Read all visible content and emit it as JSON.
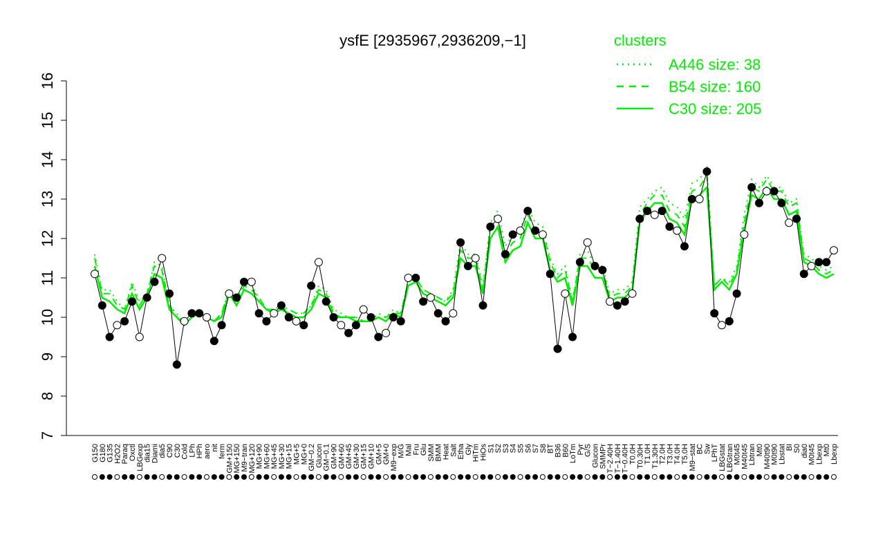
{
  "chart_data": {
    "type": "line",
    "title": "ysfE [2935967,2936209,−1]",
    "xlabel": "",
    "ylabel": "",
    "ylim": [
      7,
      16
    ],
    "yticks": [
      "7",
      "8",
      "9",
      "10",
      "11",
      "12",
      "13",
      "14",
      "15",
      "16"
    ],
    "categories": [
      "G150",
      "G180",
      "G135",
      "H2O2",
      "Paraq",
      "Oxctl",
      "LBGexp",
      "dia15",
      "Diami",
      "dia5",
      "C90",
      "C30",
      "Cold",
      "LPh",
      "HPh",
      "aero",
      "nit",
      "ferm",
      "GM+150",
      "MG+150",
      "M9−tran",
      "MG+120",
      "MG+90",
      "MG+60",
      "MG+45",
      "MG+30",
      "MG+15",
      "MG+5",
      "MG+0",
      "GM−0.2",
      "Glucon",
      "GM−0.1",
      "GM+90",
      "GM+60",
      "GM+45",
      "GM+30",
      "GM+15",
      "GM+10",
      "GM+5",
      "GM+0",
      "M9−exp",
      "M/G",
      "Mal",
      "Fru",
      "Glu",
      "SMM",
      "BMM",
      "Heat",
      "Salt",
      "Etha",
      "Gly",
      "HiTm",
      "HiOs",
      "S1",
      "S2",
      "S3",
      "S4",
      "S5",
      "S6",
      "S7",
      "S8",
      "BT",
      "B36",
      "B60",
      "LoTm",
      "Pyr",
      "G/S",
      "Glucon",
      "SMMPr",
      "T−2.40H",
      "T−1.40H",
      "T−0.40H",
      "T0.0H",
      "T0.30H",
      "T1.0H",
      "T1.30H",
      "T2.0H",
      "T3.0H",
      "T4.0H",
      "T5.0H",
      "M9−stat",
      "BC",
      "Sw",
      "LPhT",
      "LBGstat",
      "LBGtran",
      "M0t45",
      "M40t45",
      "Lbtran",
      "Mt0",
      "M40t90",
      "M0t90",
      "Lbstat",
      "BI",
      "S0",
      "dia0",
      "M0t45",
      "Lbexp",
      "Mt0",
      "Lbexp"
    ],
    "series": [
      {
        "name": "A446 size: 38",
        "style": "dotted",
        "color": "#00ee00",
        "values": [
          11.6,
          10.7,
          10.7,
          10.4,
          10.2,
          10.9,
          10.4,
          10.6,
          11.4,
          11.3,
          10.3,
          10.1,
          9.8,
          10.0,
          10.2,
          10.0,
          9.9,
          10.1,
          10.7,
          10.5,
          10.8,
          10.8,
          10.5,
          10.2,
          10.2,
          10.3,
          10.2,
          10.1,
          10.1,
          10.3,
          10.8,
          10.7,
          10.2,
          10.1,
          10.0,
          10.0,
          9.9,
          9.9,
          10.1,
          10.0,
          10.2,
          10.1,
          10.9,
          11.0,
          10.7,
          10.6,
          10.5,
          10.4,
          10.7,
          11.9,
          11.6,
          11.6,
          10.8,
          12.4,
          12.7,
          11.8,
          12.1,
          12.2,
          12.8,
          12.4,
          12.3,
          11.5,
          11.1,
          11.3,
          10.4,
          11.6,
          11.7,
          11.3,
          11.3,
          10.6,
          10.7,
          10.7,
          10.9,
          12.8,
          13.0,
          13.2,
          13.3,
          12.9,
          12.8,
          12.5,
          13.4,
          13.5,
          13.8,
          10.8,
          11.0,
          10.9,
          11.3,
          12.6,
          13.5,
          13.3,
          13.6,
          13.3,
          13.3,
          12.9,
          13.0,
          11.6,
          11.5,
          11.3,
          11.2,
          11.3
        ]
      },
      {
        "name": "B54 size: 160",
        "style": "dashed",
        "color": "#00ee00",
        "values": [
          11.5,
          10.6,
          10.6,
          10.3,
          10.2,
          10.8,
          10.3,
          10.6,
          11.3,
          11.2,
          10.3,
          10.0,
          9.8,
          10.0,
          10.1,
          10.0,
          9.9,
          10.1,
          10.7,
          10.4,
          10.8,
          10.7,
          10.5,
          10.2,
          10.2,
          10.2,
          10.2,
          10.1,
          10.1,
          10.3,
          10.7,
          10.6,
          10.1,
          10.0,
          10.0,
          10.0,
          9.9,
          9.9,
          10.0,
          10.0,
          10.1,
          10.1,
          10.9,
          11.0,
          10.7,
          10.6,
          10.5,
          10.4,
          10.6,
          11.7,
          11.5,
          11.5,
          10.7,
          12.3,
          12.5,
          11.6,
          11.9,
          12.0,
          12.6,
          12.2,
          12.2,
          11.4,
          11.0,
          11.2,
          10.4,
          11.5,
          11.5,
          11.2,
          11.2,
          10.5,
          10.6,
          10.6,
          10.8,
          12.6,
          12.9,
          13.1,
          13.1,
          12.7,
          12.6,
          12.3,
          13.2,
          13.3,
          13.6,
          10.8,
          11.0,
          10.8,
          11.2,
          12.4,
          13.3,
          13.2,
          13.5,
          13.2,
          13.2,
          12.8,
          12.9,
          11.5,
          11.4,
          11.2,
          11.1,
          11.2
        ]
      },
      {
        "name": "C30 size: 205",
        "style": "solid",
        "color": "#00ee00",
        "values": [
          11.3,
          10.5,
          10.4,
          10.2,
          10.1,
          10.6,
          10.2,
          10.5,
          11.1,
          11.0,
          10.2,
          10.0,
          9.8,
          10.0,
          10.1,
          10.0,
          9.9,
          10.0,
          10.6,
          10.3,
          10.7,
          10.6,
          10.4,
          10.2,
          10.1,
          10.2,
          10.1,
          10.0,
          10.0,
          10.2,
          10.6,
          10.5,
          10.0,
          10.0,
          10.0,
          9.9,
          9.9,
          9.9,
          10.0,
          9.9,
          10.1,
          10.0,
          10.8,
          10.9,
          10.6,
          10.5,
          10.4,
          10.3,
          10.5,
          11.5,
          11.3,
          11.3,
          10.6,
          12.0,
          12.3,
          11.4,
          11.7,
          11.8,
          12.4,
          12.0,
          12.0,
          11.2,
          10.9,
          11.0,
          10.3,
          11.3,
          11.3,
          11.0,
          11.0,
          10.4,
          10.5,
          10.5,
          10.7,
          12.4,
          12.7,
          12.9,
          12.9,
          12.5,
          12.4,
          12.1,
          13.0,
          13.1,
          13.3,
          10.7,
          10.9,
          10.7,
          11.1,
          12.2,
          13.1,
          13.0,
          13.3,
          13.0,
          13.0,
          12.6,
          12.7,
          11.4,
          11.3,
          11.1,
          11.0,
          11.1
        ]
      },
      {
        "name": "points",
        "style": "points",
        "color": "#000000",
        "values": [
          11.1,
          10.3,
          9.5,
          9.8,
          9.9,
          10.4,
          9.5,
          10.5,
          10.9,
          11.5,
          10.6,
          8.8,
          9.9,
          10.1,
          10.1,
          10.0,
          9.4,
          9.8,
          10.6,
          10.5,
          10.9,
          10.9,
          10.1,
          9.9,
          10.1,
          10.3,
          10.0,
          9.9,
          9.8,
          10.8,
          11.4,
          10.4,
          10.0,
          9.8,
          9.6,
          9.8,
          10.2,
          10.0,
          9.5,
          9.6,
          10.0,
          9.9,
          11.0,
          11.0,
          10.4,
          10.5,
          10.1,
          9.9,
          10.1,
          11.9,
          11.3,
          11.5,
          10.3,
          12.3,
          12.5,
          11.6,
          12.1,
          12.2,
          12.7,
          12.2,
          12.1,
          11.1,
          9.2,
          10.6,
          9.5,
          11.4,
          11.9,
          11.3,
          11.2,
          10.4,
          10.3,
          10.4,
          10.6,
          12.5,
          12.7,
          12.6,
          12.7,
          12.3,
          12.2,
          11.8,
          13.0,
          13.0,
          13.7,
          10.1,
          9.8,
          9.9,
          10.6,
          12.1,
          13.3,
          12.9,
          13.2,
          13.2,
          12.9,
          12.4,
          12.5,
          11.1,
          11.3,
          11.4,
          11.4,
          11.7
        ]
      }
    ],
    "legend": {
      "title": "clusters",
      "placement": "top-right"
    }
  }
}
